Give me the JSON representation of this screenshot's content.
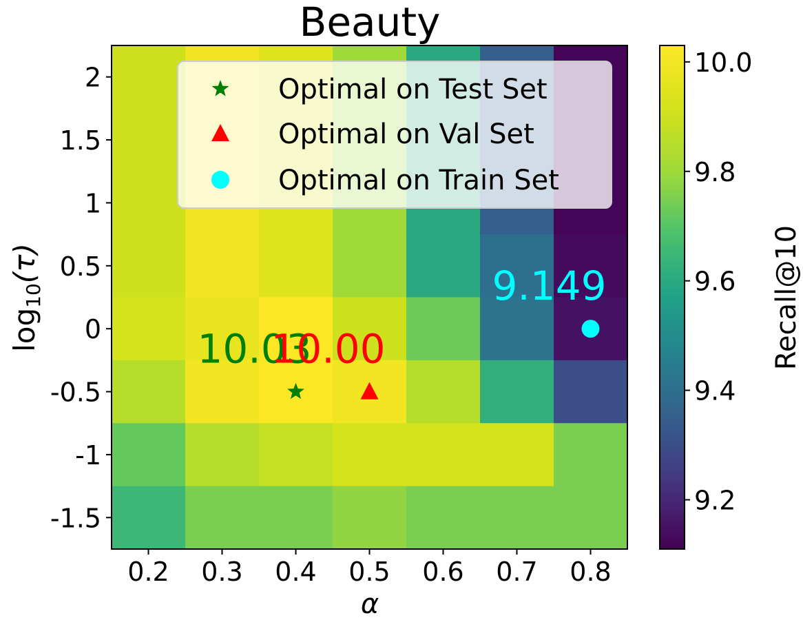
{
  "chart_data": {
    "type": "heatmap",
    "title": "Beauty",
    "xlabel": "α",
    "ylabel_main": "log",
    "ylabel_sub": "10",
    "ylabel_tail": "(τ)",
    "colorbar_label": "Recall@10",
    "x": [
      0.2,
      0.3,
      0.4,
      0.5,
      0.6,
      0.7,
      0.8
    ],
    "x_tick_labels": [
      "0.2",
      "0.3",
      "0.4",
      "0.5",
      "0.6",
      "0.7",
      "0.8"
    ],
    "y": [
      2,
      1.5,
      1,
      0.5,
      0,
      -0.5,
      -1,
      -1.5
    ],
    "y_tick_labels": [
      "2",
      "1.5",
      "1",
      "0.5",
      "0",
      "-0.5",
      "-1",
      "-1.5"
    ],
    "z": [
      [
        9.9,
        10.0,
        9.95,
        9.8,
        9.6,
        9.35,
        9.12
      ],
      [
        9.9,
        10.0,
        9.95,
        9.8,
        9.6,
        9.35,
        9.12
      ],
      [
        9.9,
        10.0,
        9.95,
        9.8,
        9.6,
        9.35,
        9.12
      ],
      [
        9.9,
        10.0,
        9.95,
        9.8,
        9.6,
        9.4,
        9.13
      ],
      [
        9.92,
        9.97,
        10.03,
        9.9,
        9.73,
        9.42,
        9.15
      ],
      [
        9.85,
        10.0,
        10.03,
        10.0,
        9.85,
        9.62,
        9.3
      ],
      [
        9.72,
        9.85,
        9.88,
        9.92,
        9.92,
        9.92,
        9.75
      ],
      [
        9.65,
        9.75,
        9.75,
        9.78,
        9.75,
        9.75,
        9.75
      ]
    ],
    "colorbar_range": [
      9.11,
      10.03
    ],
    "colorbar_ticks": [
      9.2,
      9.4,
      9.6,
      9.8,
      10.0
    ],
    "colorbar_tick_labels": [
      "9.2",
      "9.4",
      "9.6",
      "9.8",
      "10.0"
    ],
    "markers": [
      {
        "name": "Optimal on Test Set",
        "alpha": 0.4,
        "log_tau": -0.5,
        "value_label": "10.03",
        "color": "#008000",
        "shape": "star"
      },
      {
        "name": "Optimal on Val Set",
        "alpha": 0.5,
        "log_tau": -0.5,
        "value_label": "10.00",
        "color": "#ff0000",
        "shape": "triangle"
      },
      {
        "name": "Optimal on Train Set",
        "alpha": 0.8,
        "log_tau": 0.0,
        "value_label": "9.149",
        "color": "#00ffff",
        "shape": "circle"
      }
    ],
    "legend_position": "top-center"
  }
}
